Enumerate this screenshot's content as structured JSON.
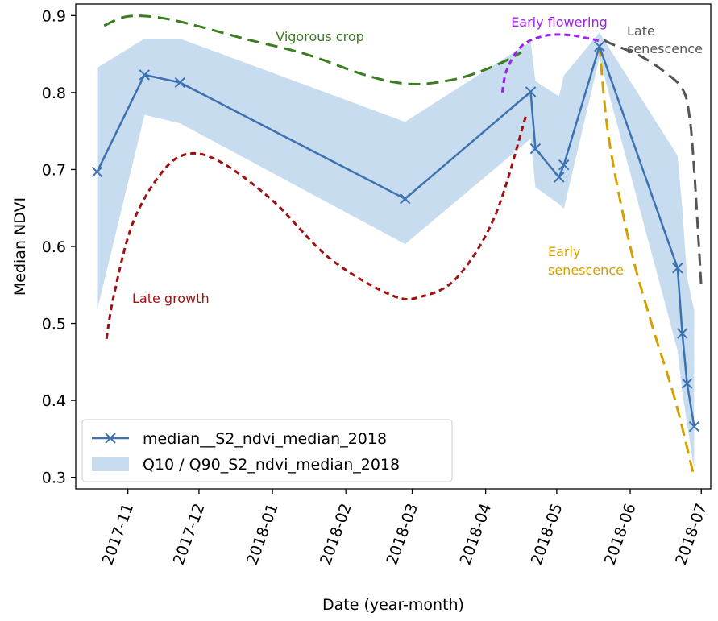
{
  "chart_data": {
    "type": "line",
    "xlabel": "Date (year-month)",
    "ylabel": "Median NDVI",
    "xlim": [
      "2017-10-10",
      "2018-07-05"
    ],
    "ylim": [
      0.285,
      0.915
    ],
    "x_ticks": [
      "2017-11-01",
      "2017-12-01",
      "2018-01-01",
      "2018-02-01",
      "2018-03-01",
      "2018-04-01",
      "2018-05-01",
      "2018-06-01",
      "2018-07-01"
    ],
    "x_tick_labels": [
      "2017-11",
      "2017-12",
      "2018-01",
      "2018-02",
      "2018-03",
      "2018-04",
      "2018-05",
      "2018-06",
      "2018-07"
    ],
    "y_ticks": [
      0.3,
      0.4,
      0.5,
      0.6,
      0.7,
      0.8,
      0.9
    ],
    "y_tick_labels": [
      "0.3",
      "0.4",
      "0.5",
      "0.6",
      "0.7",
      "0.8",
      "0.9"
    ],
    "series": [
      {
        "name": "median__S2_ndvi_median_2018",
        "color": "#3d72b0",
        "marker": "x",
        "x": [
          "2017-10-19",
          "2017-11-08",
          "2017-11-23",
          "2018-02-26",
          "2018-04-20",
          "2018-04-22",
          "2018-05-02",
          "2018-05-04",
          "2018-05-19",
          "2018-06-21",
          "2018-06-23",
          "2018-06-25",
          "2018-06-28"
        ],
        "y": [
          0.697,
          0.823,
          0.813,
          0.662,
          0.801,
          0.727,
          0.69,
          0.706,
          0.86,
          0.572,
          0.487,
          0.422,
          0.366
        ]
      }
    ],
    "band": {
      "name": "Q10 / Q90_S2_ndvi_median_2018",
      "color": "#c8dcf0",
      "x": [
        "2017-10-19",
        "2017-11-08",
        "2017-11-23",
        "2018-02-26",
        "2018-04-20",
        "2018-04-22",
        "2018-05-02",
        "2018-05-04",
        "2018-05-19",
        "2018-06-21",
        "2018-06-23",
        "2018-06-25",
        "2018-06-28"
      ],
      "upper": [
        0.832,
        0.87,
        0.87,
        0.762,
        0.866,
        0.815,
        0.795,
        0.822,
        0.878,
        0.718,
        0.65,
        0.56,
        0.517
      ],
      "lower": [
        0.517,
        0.771,
        0.76,
        0.603,
        0.74,
        0.677,
        0.655,
        0.649,
        0.845,
        0.465,
        0.41,
        0.37,
        0.31
      ]
    },
    "annotations": [
      {
        "label": "Vigorous crop",
        "color": "#3a7d1e",
        "dash": "long",
        "curve": [
          [
            "2017-10-22",
            0.887
          ],
          [
            "2017-11-01",
            0.899
          ],
          [
            "2017-11-15",
            0.897
          ],
          [
            "2017-12-01",
            0.886
          ],
          [
            "2017-12-20",
            0.87
          ],
          [
            "2018-01-15",
            0.85
          ],
          [
            "2018-02-10",
            0.822
          ],
          [
            "2018-03-01",
            0.811
          ],
          [
            "2018-03-20",
            0.818
          ],
          [
            "2018-04-05",
            0.835
          ],
          [
            "2018-04-16",
            0.852
          ]
        ]
      },
      {
        "label": "Late growth",
        "color": "#a01010",
        "dash": "short",
        "curve": [
          [
            "2017-10-23",
            0.48
          ],
          [
            "2017-10-26",
            0.535
          ],
          [
            "2017-11-03",
            0.63
          ],
          [
            "2017-11-15",
            0.695
          ],
          [
            "2017-11-26",
            0.72
          ],
          [
            "2017-12-10",
            0.71
          ],
          [
            "2018-01-01",
            0.66
          ],
          [
            "2018-01-25",
            0.585
          ],
          [
            "2018-02-20",
            0.537
          ],
          [
            "2018-03-05",
            0.535
          ],
          [
            "2018-03-20",
            0.56
          ],
          [
            "2018-04-05",
            0.64
          ],
          [
            "2018-04-18",
            0.77
          ]
        ]
      },
      {
        "label": "Early flowering",
        "color": "#a020f0",
        "dash": "short",
        "curve": [
          [
            "2018-04-08",
            0.8
          ],
          [
            "2018-04-10",
            0.83
          ],
          [
            "2018-04-16",
            0.86
          ],
          [
            "2018-04-25",
            0.873
          ],
          [
            "2018-05-05",
            0.875
          ],
          [
            "2018-05-15",
            0.87
          ],
          [
            "2018-05-20",
            0.866
          ]
        ]
      },
      {
        "label": "Late\nsenescence",
        "color": "#555555",
        "dash": "long",
        "curve": [
          [
            "2018-05-21",
            0.868
          ],
          [
            "2018-05-25",
            0.862
          ],
          [
            "2018-06-05",
            0.848
          ],
          [
            "2018-06-15",
            0.828
          ],
          [
            "2018-06-23",
            0.805
          ],
          [
            "2018-06-26",
            0.77
          ],
          [
            "2018-06-28",
            0.7
          ],
          [
            "2018-06-30",
            0.6
          ],
          [
            "2018-07-01",
            0.548
          ]
        ]
      },
      {
        "label": "Early\nsenescence",
        "color": "#d4a000",
        "dash": "long",
        "curve": [
          [
            "2018-05-19",
            0.862
          ],
          [
            "2018-05-23",
            0.74
          ],
          [
            "2018-06-01",
            0.6
          ],
          [
            "2018-06-10",
            0.5
          ],
          [
            "2018-06-20",
            0.4
          ],
          [
            "2018-06-28",
            0.3
          ]
        ]
      }
    ],
    "legend": {
      "placement": "lower-left",
      "entries": [
        "median__S2_ndvi_median_2018",
        "Q10 / Q90_S2_ndvi_median_2018"
      ]
    },
    "grid": false
  }
}
